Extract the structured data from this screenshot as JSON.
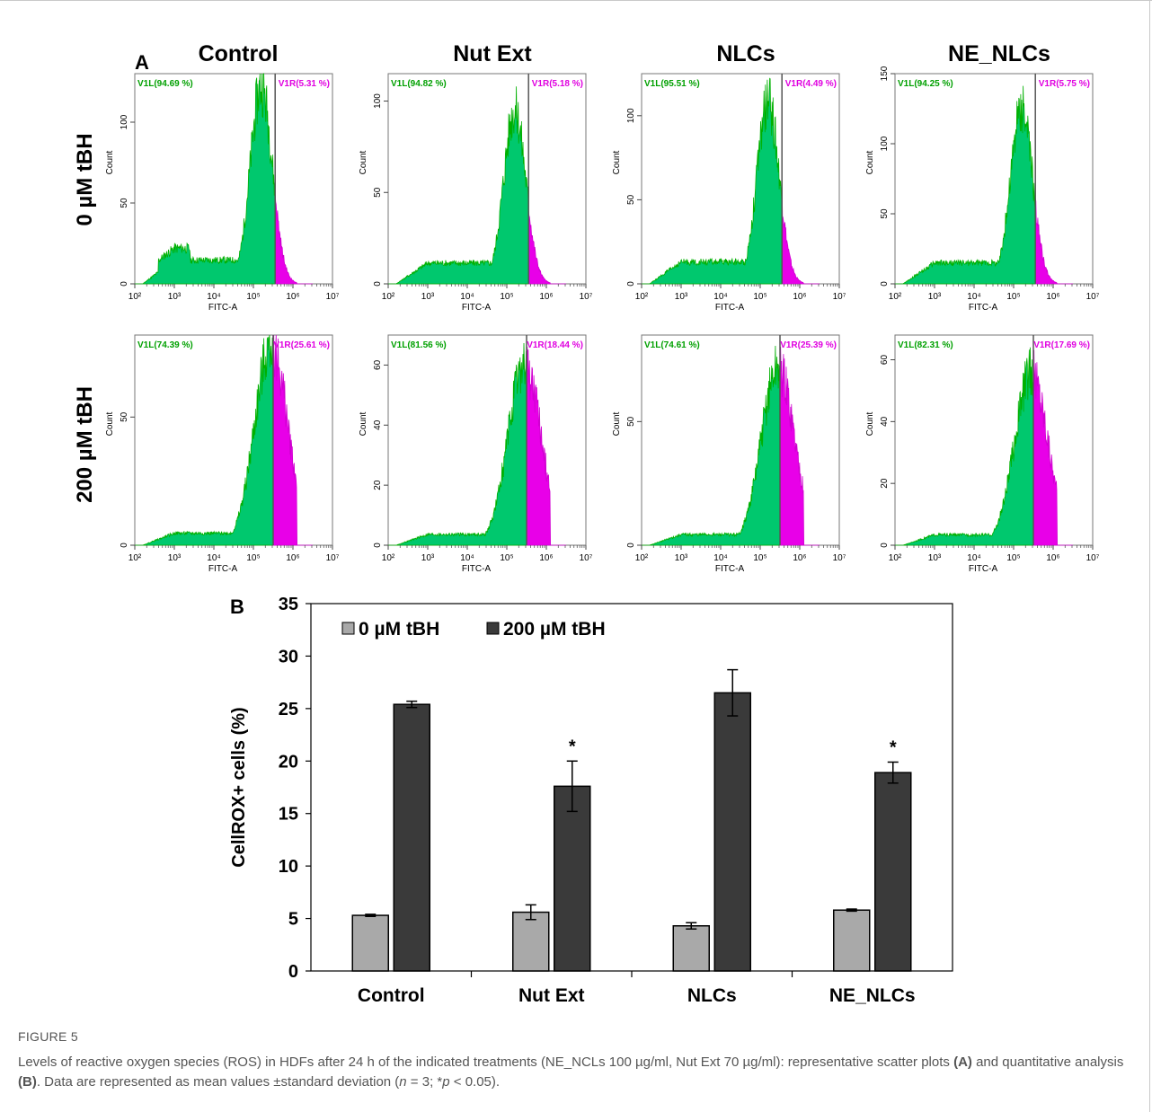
{
  "panel_a": {
    "label": "A",
    "columns": [
      "Control",
      "Nut Ext",
      "NLCs",
      "NE_NLCs"
    ],
    "rows": [
      "0 µM tBH",
      "200 µM tBH"
    ],
    "x_axis_label": "FITC-A",
    "y_axis_label": "Count",
    "x_tick_labels": [
      "10²",
      "10³",
      "10⁴",
      "10⁵",
      "10⁶",
      "10⁷"
    ],
    "gate_left_label": "V1L",
    "gate_right_label": "V1R",
    "colors": {
      "gate_left": "#00c86e",
      "gate_right": "#e800e8",
      "gate_left_text": "#00a000",
      "gate_right_text": "#e000e0"
    },
    "plots": [
      {
        "row": 0,
        "col": 0,
        "v1l": "V1L(94.69 %)",
        "v1r": "V1R(5.31 %)",
        "y_ticks": [
          "0",
          "50",
          "100"
        ],
        "y_max": 130,
        "peak": 122
      },
      {
        "row": 0,
        "col": 1,
        "v1l": "V1L(94.82 %)",
        "v1r": "V1R(5.18 %)",
        "y_ticks": [
          "0",
          "50",
          "100"
        ],
        "y_max": 115,
        "peak": 95
      },
      {
        "row": 0,
        "col": 2,
        "v1l": "V1L(95.51 %)",
        "v1r": "V1R(4.49 %)",
        "y_ticks": [
          "0",
          "50",
          "100"
        ],
        "y_max": 125,
        "peak": 108
      },
      {
        "row": 0,
        "col": 3,
        "v1l": "V1L(94.25 %)",
        "v1r": "V1R(5.75 %)",
        "y_ticks": [
          "0",
          "50",
          "100",
          "150"
        ],
        "y_max": 150,
        "peak": 125
      },
      {
        "row": 1,
        "col": 0,
        "v1l": "V1L(74.39 %)",
        "v1r": "V1R(25.61 %)",
        "y_ticks": [
          "0",
          "50"
        ],
        "y_max": 82,
        "peak": 78
      },
      {
        "row": 1,
        "col": 1,
        "v1l": "V1L(81.56 %)",
        "v1r": "V1R(18.44 %)",
        "y_ticks": [
          "0",
          "20",
          "40",
          "60"
        ],
        "y_max": 70,
        "peak": 60
      },
      {
        "row": 1,
        "col": 2,
        "v1l": "V1L(74.61 %)",
        "v1r": "V1R(25.39 %)",
        "y_ticks": [
          "0",
          "50"
        ],
        "y_max": 85,
        "peak": 72
      },
      {
        "row": 1,
        "col": 3,
        "v1l": "V1L(82.31 %)",
        "v1r": "V1R(17.69 %)",
        "y_ticks": [
          "0",
          "20",
          "40",
          "60"
        ],
        "y_max": 68,
        "peak": 56
      }
    ]
  },
  "chart_data": {
    "type": "bar",
    "label": "B",
    "categories": [
      "Control",
      "Nut Ext",
      "NLCs",
      "NE_NLCs"
    ],
    "series": [
      {
        "name": "0 µM tBH",
        "values": [
          5.3,
          5.6,
          4.3,
          5.8
        ],
        "errors": [
          0.1,
          0.7,
          0.3,
          0.1
        ],
        "color": "#a9a9a9"
      },
      {
        "name": "200 µM tBH",
        "values": [
          25.4,
          17.6,
          26.5,
          18.9
        ],
        "errors": [
          0.3,
          2.4,
          2.2,
          1.0
        ],
        "color": "#3a3a3a"
      }
    ],
    "significance": [
      "",
      "*",
      "",
      "*"
    ],
    "ylabel": "CellROX+ cells (%)",
    "xlabel": "",
    "ylim": [
      0,
      35
    ],
    "y_ticks": [
      "0",
      "5",
      "10",
      "15",
      "20",
      "25",
      "30",
      "35"
    ],
    "legend_position": "top-left"
  },
  "caption": {
    "title": "FIGURE 5",
    "text_1": "Levels of reactive oxygen species (ROS) in HDFs after 24 h of the indicated treatments (NE_NCLs 100 µg/ml, Nut Ext 70 µg/ml): representative scatter plots ",
    "text_a": "(A)",
    "text_2": " and quantitative analysis ",
    "text_b": "(B)",
    "text_3": ". Data are represented as mean values ±standard deviation (",
    "text_n": "n",
    "text_4": " = 3; *",
    "text_p": "p",
    "text_5": " < 0.05)."
  }
}
